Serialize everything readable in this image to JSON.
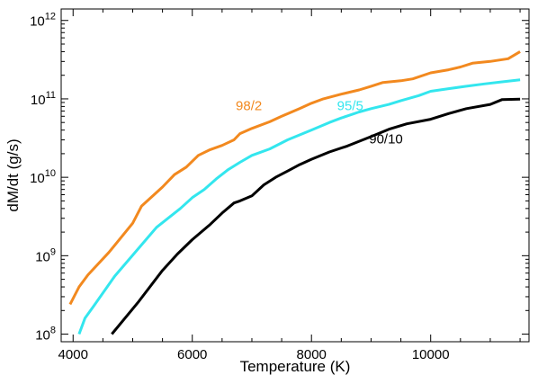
{
  "chart_data": {
    "type": "line",
    "title": "",
    "xlabel": "Temperature (K)",
    "ylabel": "dM/dt (g/s)",
    "xlim": [
      3800,
      11650
    ],
    "ylim": [
      80000000,
      1400000000000
    ],
    "yscale": "log",
    "grid": false,
    "x_ticks": [
      {
        "value": 4000,
        "label": "4000"
      },
      {
        "value": 6000,
        "label": "6000"
      },
      {
        "value": 8000,
        "label": "8000"
      },
      {
        "value": 10000,
        "label": "10000"
      }
    ],
    "y_ticks": [
      {
        "value": 100000000,
        "base": "10",
        "exp": "8"
      },
      {
        "value": 1000000000,
        "base": "10",
        "exp": "9"
      },
      {
        "value": 10000000000,
        "base": "10",
        "exp": "10"
      },
      {
        "value": 100000000000,
        "base": "10",
        "exp": "11"
      },
      {
        "value": 1000000000000,
        "base": "10",
        "exp": "12"
      }
    ],
    "series": [
      {
        "name": "98/2",
        "color": "#f2891f",
        "label_pos": [
          6950,
          72000000000
        ],
        "points": [
          [
            3950,
            240000000
          ],
          [
            4100,
            400000000
          ],
          [
            4250,
            570000000
          ],
          [
            4600,
            1100000000
          ],
          [
            5000,
            2600000000
          ],
          [
            5150,
            4300000000
          ],
          [
            5500,
            7500000000
          ],
          [
            5700,
            10800000000
          ],
          [
            5900,
            13500000000
          ],
          [
            6100,
            19000000000
          ],
          [
            6300,
            22500000000
          ],
          [
            6500,
            25500000000
          ],
          [
            6700,
            30000000000
          ],
          [
            6800,
            36000000000
          ],
          [
            7000,
            42000000000
          ],
          [
            7300,
            51000000000
          ],
          [
            7500,
            60000000000
          ],
          [
            7800,
            75000000000
          ],
          [
            8000,
            88000000000
          ],
          [
            8200,
            100000000000
          ],
          [
            8500,
            115000000000
          ],
          [
            8800,
            130000000000
          ],
          [
            9000,
            145000000000
          ],
          [
            9200,
            162000000000
          ],
          [
            9500,
            170000000000
          ],
          [
            9700,
            180000000000
          ],
          [
            10000,
            215000000000
          ],
          [
            10300,
            235000000000
          ],
          [
            10500,
            255000000000
          ],
          [
            10700,
            285000000000
          ],
          [
            11000,
            300000000000
          ],
          [
            11300,
            325000000000
          ],
          [
            11500,
            400000000000
          ]
        ]
      },
      {
        "name": "95/5",
        "color": "#33e6ee",
        "label_pos": [
          8650,
          72000000000
        ],
        "points": [
          [
            4100,
            100000000
          ],
          [
            4200,
            160000000
          ],
          [
            4350,
            230000000
          ],
          [
            4700,
            550000000
          ],
          [
            5400,
            2300000000
          ],
          [
            5800,
            4000000000
          ],
          [
            6000,
            5500000000
          ],
          [
            6200,
            7000000000
          ],
          [
            6400,
            9500000000
          ],
          [
            6600,
            12500000000
          ],
          [
            6800,
            15500000000
          ],
          [
            7000,
            19000000000
          ],
          [
            7300,
            23000000000
          ],
          [
            7600,
            30000000000
          ],
          [
            8000,
            40000000000
          ],
          [
            8300,
            50000000000
          ],
          [
            8500,
            57000000000
          ],
          [
            8800,
            68000000000
          ],
          [
            9000,
            75000000000
          ],
          [
            9300,
            85000000000
          ],
          [
            9500,
            95000000000
          ],
          [
            9800,
            110000000000
          ],
          [
            10000,
            125000000000
          ],
          [
            10300,
            135000000000
          ],
          [
            10600,
            145000000000
          ],
          [
            10900,
            155000000000
          ],
          [
            11200,
            165000000000
          ],
          [
            11500,
            175000000000
          ]
        ]
      },
      {
        "name": "90/10",
        "color": "#000000",
        "label_pos": [
          9250,
          27000000000
        ],
        "points": [
          [
            4650,
            100000000
          ],
          [
            5100,
            260000000
          ],
          [
            5500,
            650000000
          ],
          [
            5750,
            1050000000
          ],
          [
            6000,
            1600000000
          ],
          [
            6300,
            2500000000
          ],
          [
            6500,
            3500000000
          ],
          [
            6700,
            4700000000
          ],
          [
            6800,
            5000000000
          ],
          [
            7000,
            5800000000
          ],
          [
            7200,
            8000000000
          ],
          [
            7400,
            10000000000
          ],
          [
            7600,
            12000000000
          ],
          [
            7800,
            14500000000
          ],
          [
            8000,
            17000000000
          ],
          [
            8300,
            21000000000
          ],
          [
            8600,
            25000000000
          ],
          [
            9000,
            33000000000
          ],
          [
            9300,
            41000000000
          ],
          [
            9600,
            48000000000
          ],
          [
            10000,
            55000000000
          ],
          [
            10300,
            65000000000
          ],
          [
            10600,
            75000000000
          ],
          [
            11000,
            85000000000
          ],
          [
            11200,
            98000000000
          ],
          [
            11500,
            99000000000
          ]
        ]
      }
    ]
  }
}
